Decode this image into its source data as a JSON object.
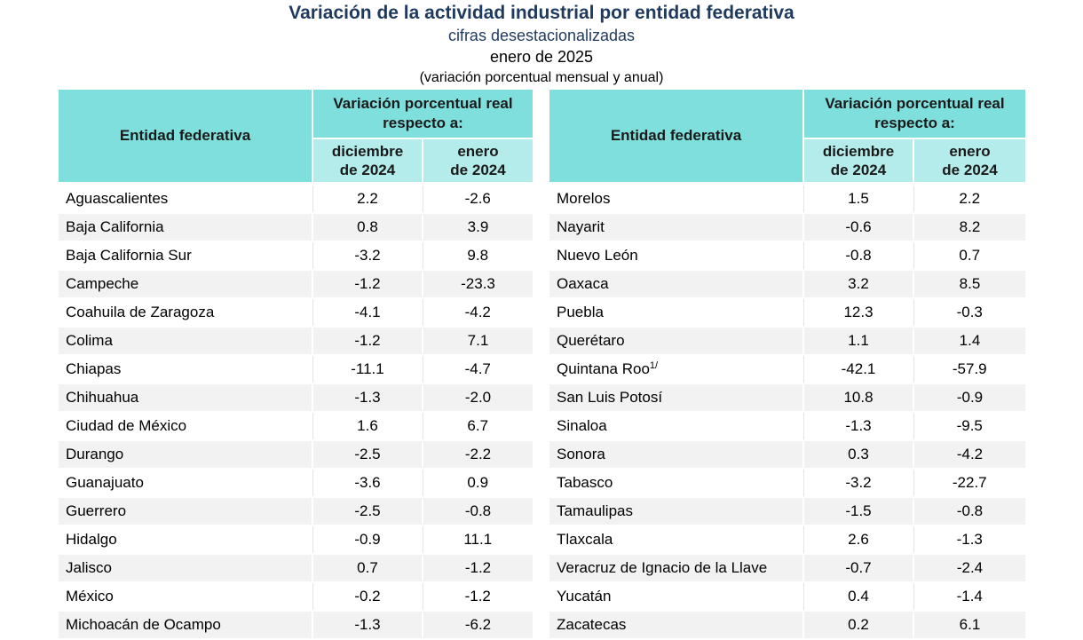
{
  "header": {
    "title": "Variación de la actividad industrial por entidad federativa",
    "subtitle": "cifras desestacionalizadas",
    "period": "enero de 2025",
    "note": "(variación porcentual mensual y anual)"
  },
  "table_headers": {
    "entity": "Entidad federativa",
    "variation": "Variación porcentual real respecto a:",
    "col1_line1": "diciembre",
    "col1_line2": "de 2024",
    "col2_line1": "enero",
    "col2_line2": "de 2024"
  },
  "left_rows": [
    {
      "name": "Aguascalientes",
      "dec": "2.2",
      "jan": "-2.6"
    },
    {
      "name": "Baja California",
      "dec": "0.8",
      "jan": "3.9"
    },
    {
      "name": "Baja California Sur",
      "dec": "-3.2",
      "jan": "9.8"
    },
    {
      "name": "Campeche",
      "dec": "-1.2",
      "jan": "-23.3"
    },
    {
      "name": "Coahuila de Zaragoza",
      "dec": "-4.1",
      "jan": "-4.2"
    },
    {
      "name": "Colima",
      "dec": "-1.2",
      "jan": "7.1"
    },
    {
      "name": "Chiapas",
      "dec": "-11.1",
      "jan": "-4.7"
    },
    {
      "name": "Chihuahua",
      "dec": "-1.3",
      "jan": "-2.0"
    },
    {
      "name": "Ciudad de México",
      "dec": "1.6",
      "jan": "6.7"
    },
    {
      "name": "Durango",
      "dec": "-2.5",
      "jan": "-2.2"
    },
    {
      "name": "Guanajuato",
      "dec": "-3.6",
      "jan": "0.9"
    },
    {
      "name": "Guerrero",
      "dec": "-2.5",
      "jan": "-0.8"
    },
    {
      "name": "Hidalgo",
      "dec": "-0.9",
      "jan": "11.1"
    },
    {
      "name": "Jalisco",
      "dec": "0.7",
      "jan": "-1.2"
    },
    {
      "name": "México",
      "dec": "-0.2",
      "jan": "-1.2"
    },
    {
      "name": "Michoacán de Ocampo",
      "dec": "-1.3",
      "jan": "-6.2"
    }
  ],
  "right_rows": [
    {
      "name": "Morelos",
      "dec": "1.5",
      "jan": "2.2"
    },
    {
      "name": "Nayarit",
      "dec": "-0.6",
      "jan": "8.2"
    },
    {
      "name": "Nuevo León",
      "dec": "-0.8",
      "jan": "0.7"
    },
    {
      "name": "Oaxaca",
      "dec": "3.2",
      "jan": "8.5"
    },
    {
      "name": "Puebla",
      "dec": "12.3",
      "jan": "-0.3"
    },
    {
      "name": "Querétaro",
      "dec": "1.1",
      "jan": "1.4"
    },
    {
      "name": "Quintana Roo",
      "note": "1/",
      "dec": "-42.1",
      "jan": "-57.9"
    },
    {
      "name": "San Luis Potosí",
      "dec": "10.8",
      "jan": "-0.9"
    },
    {
      "name": "Sinaloa",
      "dec": "-1.3",
      "jan": "-9.5"
    },
    {
      "name": "Sonora",
      "dec": "0.3",
      "jan": "-4.2"
    },
    {
      "name": "Tabasco",
      "dec": "-3.2",
      "jan": "-22.7"
    },
    {
      "name": "Tamaulipas",
      "dec": "-1.5",
      "jan": "-0.8"
    },
    {
      "name": "Tlaxcala",
      "dec": "2.6",
      "jan": "-1.3"
    },
    {
      "name": "Veracruz de Ignacio de la Llave",
      "dec": "-0.7",
      "jan": "-2.4"
    },
    {
      "name": "Yucatán",
      "dec": "0.4",
      "jan": "-1.4"
    },
    {
      "name": "Zacatecas",
      "dec": "0.2",
      "jan": "6.1"
    }
  ]
}
